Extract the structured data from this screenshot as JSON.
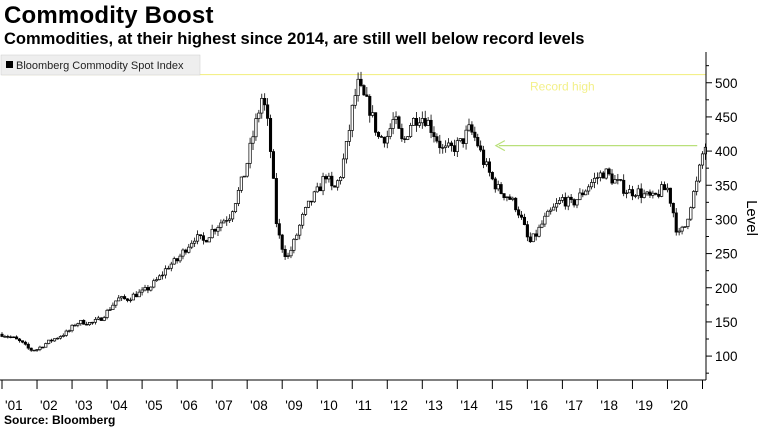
{
  "title": "Commodity Boost",
  "subtitle": "Commodities, at their highest since 2014, are still well below record levels",
  "source": "Source: Bloomberg",
  "chart_data": {
    "type": "candlestick",
    "legend": {
      "label": "Bloomberg Commodity Spot Index",
      "placement": "top-left",
      "color": "#000000"
    },
    "ylabel": "Level",
    "ylim": [
      65,
      545
    ],
    "y_ticks": [
      100,
      150,
      200,
      250,
      300,
      350,
      400,
      450,
      500
    ],
    "y_axis_side": "right",
    "x_start": 2001.0,
    "x_end": 2021.1,
    "x_tick_labels": [
      "'01",
      "'02",
      "'03",
      "'04",
      "'05",
      "'06",
      "'07",
      "'08",
      "'09",
      "'10",
      "'11",
      "'12",
      "'13",
      "'14",
      "'15",
      "'16",
      "'17",
      "'18",
      "'19",
      "'20"
    ],
    "gridlines": false,
    "annotations": [
      {
        "type": "hline",
        "text": "Record high",
        "y": 512,
        "color": "#f3f08a"
      },
      {
        "type": "arrow",
        "from_x": 2020.85,
        "to_x": 2015.1,
        "y": 408,
        "color": "#b9e07a"
      }
    ],
    "series_anchor": [
      [
        2001.0,
        132
      ],
      [
        2001.3,
        127
      ],
      [
        2001.55,
        120
      ],
      [
        2001.8,
        109
      ],
      [
        2002.0,
        110
      ],
      [
        2002.3,
        120
      ],
      [
        2002.6,
        128
      ],
      [
        2002.9,
        136
      ],
      [
        2003.1,
        148
      ],
      [
        2003.3,
        150
      ],
      [
        2003.55,
        148
      ],
      [
        2003.8,
        154
      ],
      [
        2004.0,
        165
      ],
      [
        2004.3,
        184
      ],
      [
        2004.55,
        183
      ],
      [
        2004.8,
        190
      ],
      [
        2005.0,
        193
      ],
      [
        2005.25,
        202
      ],
      [
        2005.5,
        215
      ],
      [
        2005.75,
        232
      ],
      [
        2006.0,
        240
      ],
      [
        2006.25,
        258
      ],
      [
        2006.5,
        274
      ],
      [
        2006.75,
        268
      ],
      [
        2007.0,
        284
      ],
      [
        2007.25,
        296
      ],
      [
        2007.5,
        306
      ],
      [
        2007.75,
        340
      ],
      [
        2007.95,
        372
      ],
      [
        2008.2,
        430
      ],
      [
        2008.42,
        478
      ],
      [
        2008.55,
        455
      ],
      [
        2008.7,
        385
      ],
      [
        2008.85,
        285
      ],
      [
        2009.0,
        260
      ],
      [
        2009.15,
        243
      ],
      [
        2009.35,
        268
      ],
      [
        2009.6,
        305
      ],
      [
        2009.8,
        325
      ],
      [
        2010.0,
        340
      ],
      [
        2010.25,
        366
      ],
      [
        2010.45,
        340
      ],
      [
        2010.65,
        362
      ],
      [
        2010.85,
        410
      ],
      [
        2011.0,
        460
      ],
      [
        2011.15,
        498
      ],
      [
        2011.3,
        480
      ],
      [
        2011.5,
        462
      ],
      [
        2011.75,
        420
      ],
      [
        2012.0,
        422
      ],
      [
        2012.2,
        448
      ],
      [
        2012.45,
        408
      ],
      [
        2012.65,
        440
      ],
      [
        2012.9,
        452
      ],
      [
        2013.1,
        448
      ],
      [
        2013.35,
        425
      ],
      [
        2013.6,
        400
      ],
      [
        2013.85,
        404
      ],
      [
        2014.1,
        412
      ],
      [
        2014.35,
        432
      ],
      [
        2014.55,
        415
      ],
      [
        2014.75,
        385
      ],
      [
        2015.0,
        358
      ],
      [
        2015.2,
        342
      ],
      [
        2015.45,
        334
      ],
      [
        2015.7,
        318
      ],
      [
        2015.9,
        290
      ],
      [
        2016.05,
        264
      ],
      [
        2016.25,
        278
      ],
      [
        2016.5,
        300
      ],
      [
        2016.75,
        315
      ],
      [
        2017.0,
        330
      ],
      [
        2017.25,
        322
      ],
      [
        2017.5,
        334
      ],
      [
        2017.75,
        350
      ],
      [
        2018.0,
        362
      ],
      [
        2018.2,
        370
      ],
      [
        2018.45,
        358
      ],
      [
        2018.7,
        348
      ],
      [
        2018.9,
        340
      ],
      [
        2019.1,
        342
      ],
      [
        2019.35,
        335
      ],
      [
        2019.6,
        330
      ],
      [
        2019.8,
        342
      ],
      [
        2020.0,
        345
      ],
      [
        2020.15,
        315
      ],
      [
        2020.3,
        275
      ],
      [
        2020.5,
        290
      ],
      [
        2020.7,
        330
      ],
      [
        2020.85,
        355
      ],
      [
        2021.0,
        395
      ],
      [
        2021.1,
        410
      ]
    ]
  }
}
